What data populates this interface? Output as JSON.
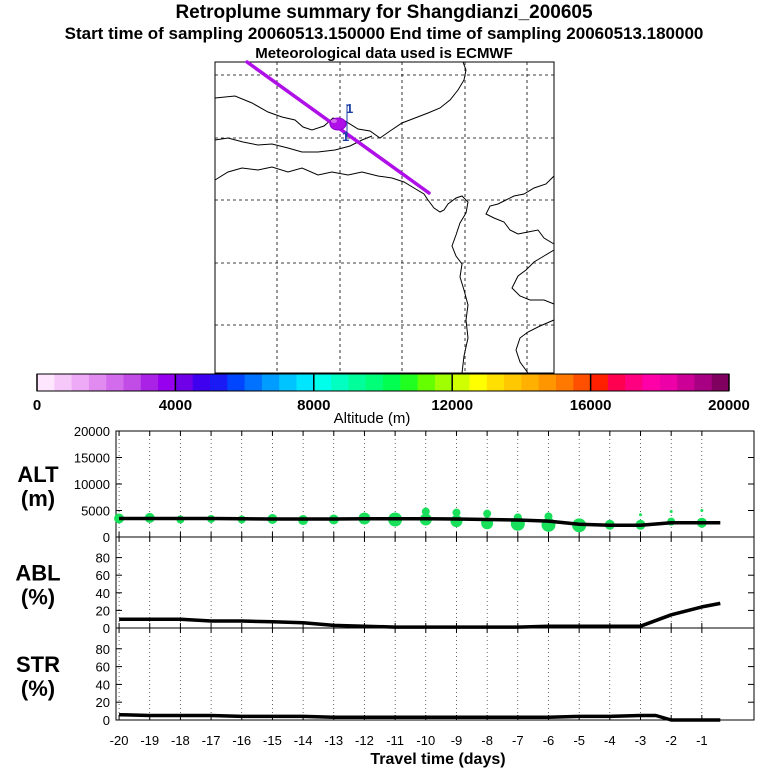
{
  "header": {
    "title": "Retroplume summary for Shangdianzi_200605",
    "subtitle": "Start time of sampling 20060513.150000     End time of sampling 20060513.180000",
    "met_note": "Meteorological data used is ECMWF"
  },
  "colors": {
    "plume": "#b010e8",
    "trajectory": "#b010e8",
    "marker": "#1b3fa8",
    "points": "#19e05a",
    "line": "#000000"
  },
  "map": {
    "markers": [
      "1",
      "1"
    ]
  },
  "colorbar": {
    "label": "Altitude (m)",
    "ticks": [
      "0",
      "4000",
      "8000",
      "12000",
      "16000",
      "20000"
    ],
    "colors": [
      "#ffe6ff",
      "#f6c8fa",
      "#eeaaf6",
      "#e18af0",
      "#d26cec",
      "#c14ce6",
      "#aa22e6",
      "#9600ee",
      "#7000e8",
      "#4000f0",
      "#1a1af5",
      "#0046ff",
      "#0072ff",
      "#009cff",
      "#00c4ff",
      "#00e6ff",
      "#00ffea",
      "#00ffc0",
      "#00ff9a",
      "#00ff78",
      "#00ff50",
      "#20ff20",
      "#66ff00",
      "#a0ff00",
      "#d0ff00",
      "#ffff00",
      "#ffe000",
      "#ffc800",
      "#ffb000",
      "#ff9600",
      "#ff7800",
      "#ff5000",
      "#ff2000",
      "#ff0050",
      "#ff0080",
      "#ff00a8",
      "#ee00a8",
      "#cc0096",
      "#a80082",
      "#800060"
    ]
  },
  "xaxis": {
    "label": "Travel time (days)",
    "ticks": [
      "-20",
      "-19",
      "-18",
      "-17",
      "-16",
      "-15",
      "-14",
      "-13",
      "-12",
      "-11",
      "-10",
      "-9",
      "-8",
      "-7",
      "-6",
      "-5",
      "-4",
      "-3",
      "-2",
      "-1"
    ]
  },
  "chart_data": [
    {
      "type": "line",
      "panel": "ALT",
      "ylabel": "ALT (m)",
      "ylabel_top": "ALT",
      "ylabel_bottom": "(m)",
      "ylim": [
        0,
        20000
      ],
      "yticks": [
        "0",
        "5000",
        "10000",
        "15000",
        "20000"
      ],
      "x": [
        -20,
        -19,
        -18,
        -17,
        -16,
        -15,
        -14,
        -13,
        -12,
        -11,
        -10,
        -9,
        -8,
        -7,
        -6,
        -5,
        -4,
        -3,
        -2,
        -1,
        -0.4
      ],
      "y": [
        3500,
        3500,
        3500,
        3500,
        3450,
        3400,
        3400,
        3400,
        3450,
        3450,
        3450,
        3400,
        3300,
        3200,
        3000,
        2400,
        2200,
        2200,
        2700,
        2700,
        2700
      ],
      "scatter": {
        "x": [
          -20,
          -19,
          -18,
          -17,
          -16,
          -15,
          -14,
          -13,
          -12,
          -11,
          -10,
          -10,
          -9,
          -9,
          -8,
          -8,
          -7,
          -7,
          -6,
          -6,
          -5,
          -4,
          -3,
          -3,
          -2,
          -2,
          -1,
          -1
        ],
        "y": [
          3500,
          3600,
          3300,
          3400,
          3300,
          3400,
          3200,
          3300,
          3500,
          3300,
          4800,
          3300,
          4600,
          3000,
          4400,
          2600,
          3700,
          2500,
          3900,
          2300,
          2200,
          2300,
          4200,
          2300,
          4800,
          2900,
          5000,
          2700
        ],
        "size": [
          5,
          5,
          4,
          4,
          4,
          5,
          5,
          5,
          6,
          7,
          4,
          6,
          4,
          6,
          4,
          6,
          4,
          7,
          4,
          7,
          7,
          5,
          1.5,
          5,
          1.5,
          4,
          1.5,
          5
        ]
      }
    },
    {
      "type": "line",
      "panel": "ABL",
      "ylabel": "ABL (%)",
      "ylabel_top": "ABL",
      "ylabel_bottom": "(%)",
      "ylim": [
        0,
        100
      ],
      "yticks": [
        "0",
        "20",
        "40",
        "60",
        "80"
      ],
      "x": [
        -20,
        -19,
        -18,
        -17,
        -16,
        -15,
        -14,
        -13,
        -12,
        -11,
        -10,
        -9,
        -8,
        -7,
        -6,
        -5,
        -4,
        -3,
        -2,
        -1,
        -0.4
      ],
      "y": [
        10,
        10,
        10,
        8,
        8,
        7,
        6,
        3,
        2,
        1,
        1,
        1,
        1,
        1,
        2,
        2,
        2,
        2,
        15,
        24,
        28
      ]
    },
    {
      "type": "line",
      "panel": "STR",
      "ylabel": "STR (%)",
      "ylabel_top": "STR",
      "ylabel_bottom": "(%)",
      "ylim": [
        0,
        100
      ],
      "yticks": [
        "0",
        "20",
        "40",
        "60",
        "80"
      ],
      "x": [
        -20,
        -19,
        -18,
        -17,
        -16,
        -15,
        -14,
        -13,
        -12,
        -11,
        -10,
        -9,
        -8,
        -7,
        -6,
        -5,
        -4,
        -3,
        -2.5,
        -2,
        -1,
        -0.4
      ],
      "y": [
        6,
        5,
        5,
        5,
        4,
        4,
        4,
        3,
        3,
        3,
        3,
        3,
        3,
        3,
        3,
        4,
        4,
        5,
        5,
        0,
        0,
        0
      ]
    }
  ]
}
